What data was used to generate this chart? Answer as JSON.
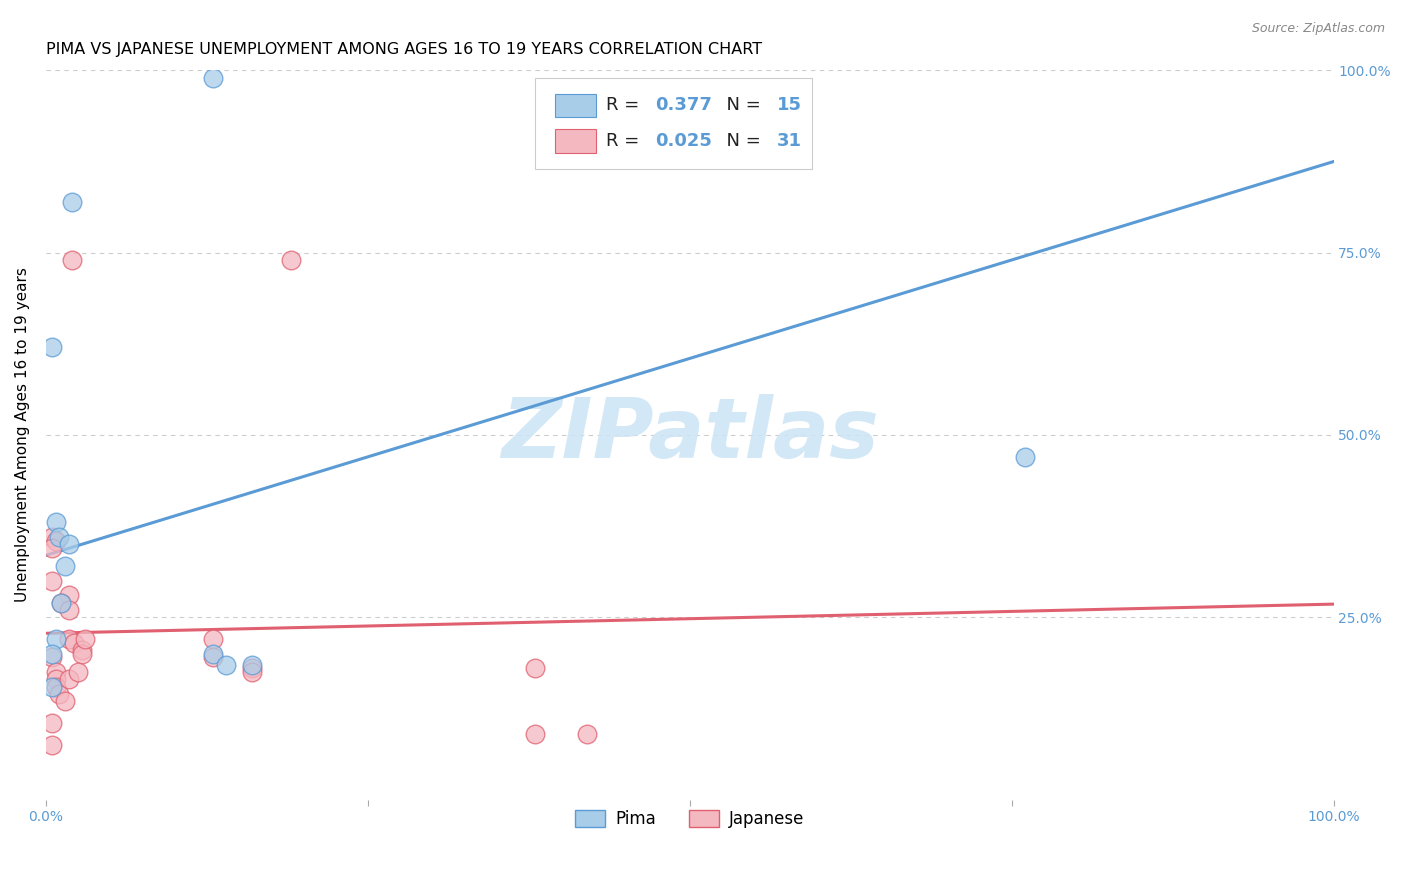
{
  "title": "PIMA VS JAPANESE UNEMPLOYMENT AMONG AGES 16 TO 19 YEARS CORRELATION CHART",
  "source": "Source: ZipAtlas.com",
  "ylabel": "Unemployment Among Ages 16 to 19 years",
  "watermark": "ZIPatlas",
  "pima_R": "0.377",
  "pima_N": "15",
  "japanese_R": "0.025",
  "japanese_N": "31",
  "pima_color": "#a8cde8",
  "japanese_color": "#f4b8c1",
  "pima_edge_color": "#5b9bd5",
  "japanese_edge_color": "#e06070",
  "pima_line_color": "#5b9bd5",
  "japanese_line_color": "#e06070",
  "legend_pima_label": "Pima",
  "legend_japanese_label": "Japanese",
  "pima_scatter_x": [
    0.13,
    0.02,
    0.005,
    0.008,
    0.01,
    0.018,
    0.015,
    0.012,
    0.008,
    0.005,
    0.13,
    0.14,
    0.16,
    0.76,
    0.005
  ],
  "pima_scatter_y": [
    0.99,
    0.82,
    0.62,
    0.38,
    0.36,
    0.35,
    0.32,
    0.27,
    0.22,
    0.2,
    0.2,
    0.185,
    0.185,
    0.47,
    0.155
  ],
  "japanese_scatter_x": [
    0.02,
    0.005,
    0.008,
    0.005,
    0.005,
    0.018,
    0.012,
    0.018,
    0.018,
    0.022,
    0.028,
    0.028,
    0.005,
    0.008,
    0.008,
    0.008,
    0.01,
    0.015,
    0.018,
    0.025,
    0.03,
    0.19,
    0.13,
    0.13,
    0.16,
    0.16,
    0.38,
    0.005,
    0.005,
    0.42,
    0.38
  ],
  "japanese_scatter_y": [
    0.74,
    0.36,
    0.355,
    0.345,
    0.3,
    0.28,
    0.27,
    0.26,
    0.22,
    0.215,
    0.205,
    0.2,
    0.195,
    0.175,
    0.165,
    0.155,
    0.145,
    0.135,
    0.165,
    0.175,
    0.22,
    0.74,
    0.22,
    0.195,
    0.18,
    0.175,
    0.18,
    0.105,
    0.075,
    0.09,
    0.09
  ],
  "pima_trendline_x": [
    0.0,
    1.0
  ],
  "pima_trendline_y": [
    0.335,
    0.875
  ],
  "japanese_trendline_x": [
    0.0,
    1.0
  ],
  "japanese_trendline_y": [
    0.228,
    0.268
  ],
  "background_color": "#ffffff",
  "grid_color": "#cccccc",
  "title_fontsize": 11.5,
  "axis_label_fontsize": 11,
  "tick_fontsize": 10,
  "source_fontsize": 9,
  "xlim": [
    0.0,
    1.0
  ],
  "ylim": [
    0.0,
    1.0
  ],
  "x_ticks": [
    0.0,
    0.25,
    0.5,
    0.75,
    1.0
  ],
  "y_ticks": [
    0.0,
    0.25,
    0.5,
    0.75,
    1.0
  ],
  "x_tick_labels_show": [
    "0.0%",
    "100.0%"
  ],
  "y_tick_labels_right": [
    "",
    "25.0%",
    "50.0%",
    "75.0%",
    "100.0%"
  ]
}
